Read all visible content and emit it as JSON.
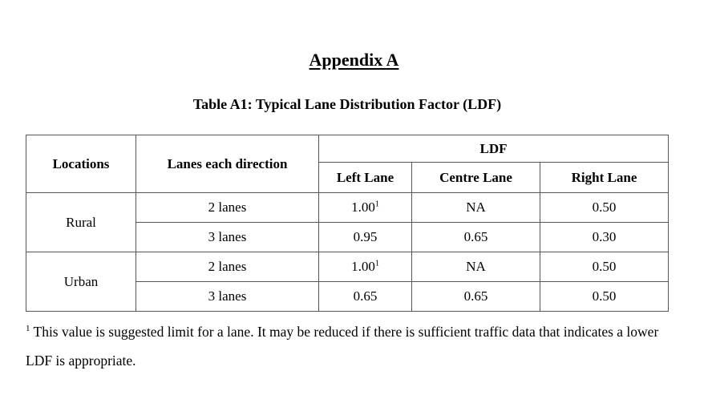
{
  "heading": "Appendix A",
  "caption": "Table A1: Typical Lane Distribution Factor (LDF)",
  "table": {
    "headers": {
      "locations": "Locations",
      "lanes": "Lanes each direction",
      "ldf": "LDF",
      "left": "Left Lane",
      "centre": "Centre Lane",
      "right": "Right Lane"
    },
    "groups": [
      {
        "location": "Rural",
        "rows": [
          {
            "lanes": "2 lanes",
            "left": "1.00",
            "left_sup": "1",
            "centre": "NA",
            "right": "0.50"
          },
          {
            "lanes": "3 lanes",
            "left": "0.95",
            "left_sup": "",
            "centre": "0.65",
            "right": "0.30"
          }
        ]
      },
      {
        "location": "Urban",
        "rows": [
          {
            "lanes": "2 lanes",
            "left": "1.00",
            "left_sup": "1",
            "centre": "NA",
            "right": "0.50"
          },
          {
            "lanes": "3 lanes",
            "left": "0.65",
            "left_sup": "",
            "centre": "0.65",
            "right": "0.50"
          }
        ]
      }
    ]
  },
  "footnote": {
    "marker": "1",
    "text": "This value is suggested limit for a lane. It may be reduced if there is sufficient traffic data that indicates a lower LDF is appropriate."
  }
}
